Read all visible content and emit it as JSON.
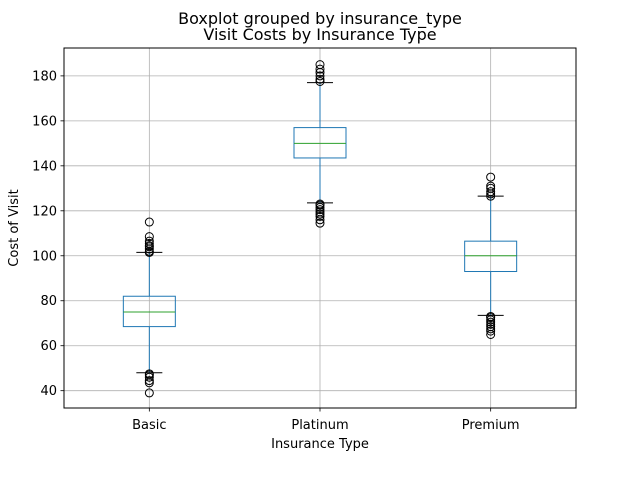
{
  "chart_data": {
    "type": "boxplot",
    "suptitle": "Boxplot grouped by insurance_type",
    "title": "Visit Costs by Insurance Type",
    "xlabel": "Insurance Type",
    "ylabel": "Cost of Visit",
    "ylim": [
      32.3,
      192.4
    ],
    "yticks": [
      40,
      60,
      80,
      100,
      120,
      140,
      160,
      180
    ],
    "grid": true,
    "categories": [
      "Basic",
      "Platinum",
      "Premium"
    ],
    "boxes": [
      {
        "category": "Basic",
        "whisker_low": 48,
        "q1": 68.5,
        "median": 75,
        "q3": 82,
        "whisker_high": 101.5,
        "outliers": [
          39,
          43.5,
          44.5,
          46,
          47,
          47.5,
          101.5,
          102,
          103,
          104,
          104.5,
          105.5,
          106.5,
          108.5,
          115
        ]
      },
      {
        "category": "Platinum",
        "whisker_low": 123.5,
        "q1": 143.5,
        "median": 150,
        "q3": 157,
        "whisker_high": 177,
        "outliers": [
          114.5,
          116,
          117.5,
          118.5,
          119.5,
          120.5,
          121.5,
          122.5,
          123,
          177.5,
          178.5,
          180,
          181.5,
          183,
          185
        ]
      },
      {
        "category": "Premium",
        "whisker_low": 73.5,
        "q1": 93,
        "median": 100,
        "q3": 106.5,
        "whisker_high": 126.5,
        "outliers": [
          65,
          66.5,
          67.5,
          68.5,
          69.5,
          70.5,
          71.5,
          72.5,
          73,
          126.5,
          127.5,
          128.5,
          130,
          131,
          135
        ]
      }
    ],
    "colors": {
      "box": "#1f77b4",
      "median": "#2ca02c",
      "grid": "#b0b0b0",
      "outlier": "#000000",
      "axis": "#000000"
    }
  }
}
